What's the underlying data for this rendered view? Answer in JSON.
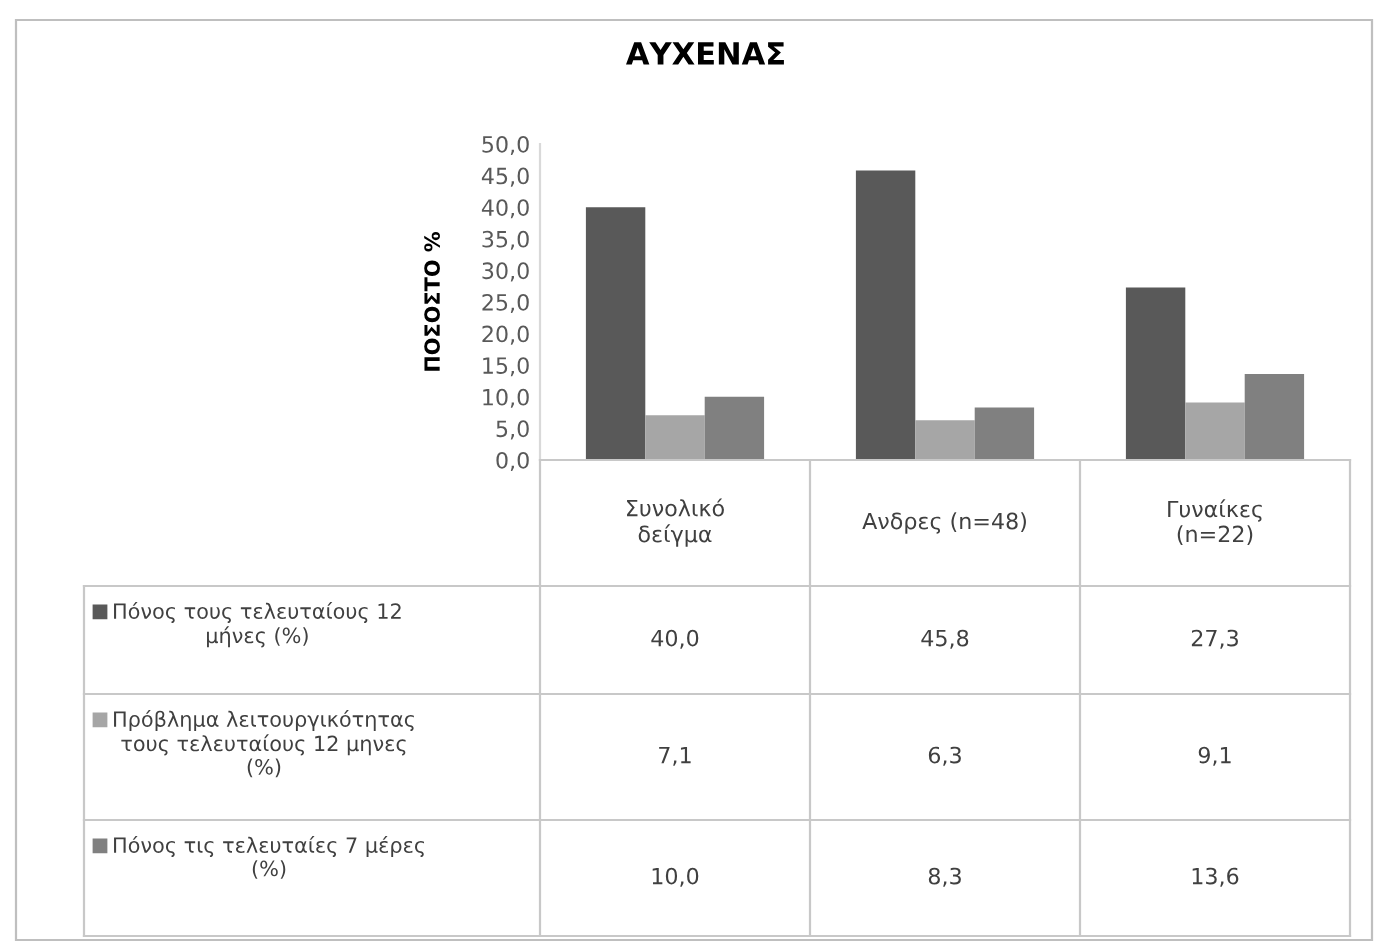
{
  "chart_data": {
    "type": "bar",
    "title": "ΑΥΧΕΝΑΣ",
    "ylabel": "ΠΟΣΟΣΤΟ %",
    "categories": [
      "Συνολικό\nδείγμα",
      "Ανδρες (n=48)",
      "Γυναίκες\n(n=22)"
    ],
    "series": [
      {
        "name": "Πόνος τους τελευταίους 12\nμήνες (%)",
        "color": "#595959",
        "values": [
          40.0,
          45.8,
          27.3
        ],
        "value_labels": [
          "40,0",
          "45,8",
          "27,3"
        ]
      },
      {
        "name": "Πρόβλημα λειτουργικότητας\nτους τελευταίους 12 μηνες\n(%)",
        "color": "#a6a6a6",
        "values": [
          7.1,
          6.3,
          9.1
        ],
        "value_labels": [
          "7,1",
          "6,3",
          "9,1"
        ]
      },
      {
        "name": "Πόνος τις τελευταίες 7 μέρες\n(%)",
        "color": "#808080",
        "values": [
          10.0,
          8.3,
          13.6
        ],
        "value_labels": [
          "10,0",
          "8,3",
          "13,6"
        ]
      }
    ],
    "ylim": [
      0,
      50
    ],
    "yticks": [
      {
        "value": 0,
        "label": "0,0"
      },
      {
        "value": 5,
        "label": "5,0"
      },
      {
        "value": 10,
        "label": "10,0"
      },
      {
        "value": 15,
        "label": "15,0"
      },
      {
        "value": 20,
        "label": "20,0"
      },
      {
        "value": 25,
        "label": "25,0"
      },
      {
        "value": 30,
        "label": "30,0"
      },
      {
        "value": 35,
        "label": "35,0"
      },
      {
        "value": 40,
        "label": "40,0"
      },
      {
        "value": 45,
        "label": "45,0"
      },
      {
        "value": 50,
        "label": "50,0"
      }
    ],
    "grid": false,
    "legend": "bottom"
  }
}
